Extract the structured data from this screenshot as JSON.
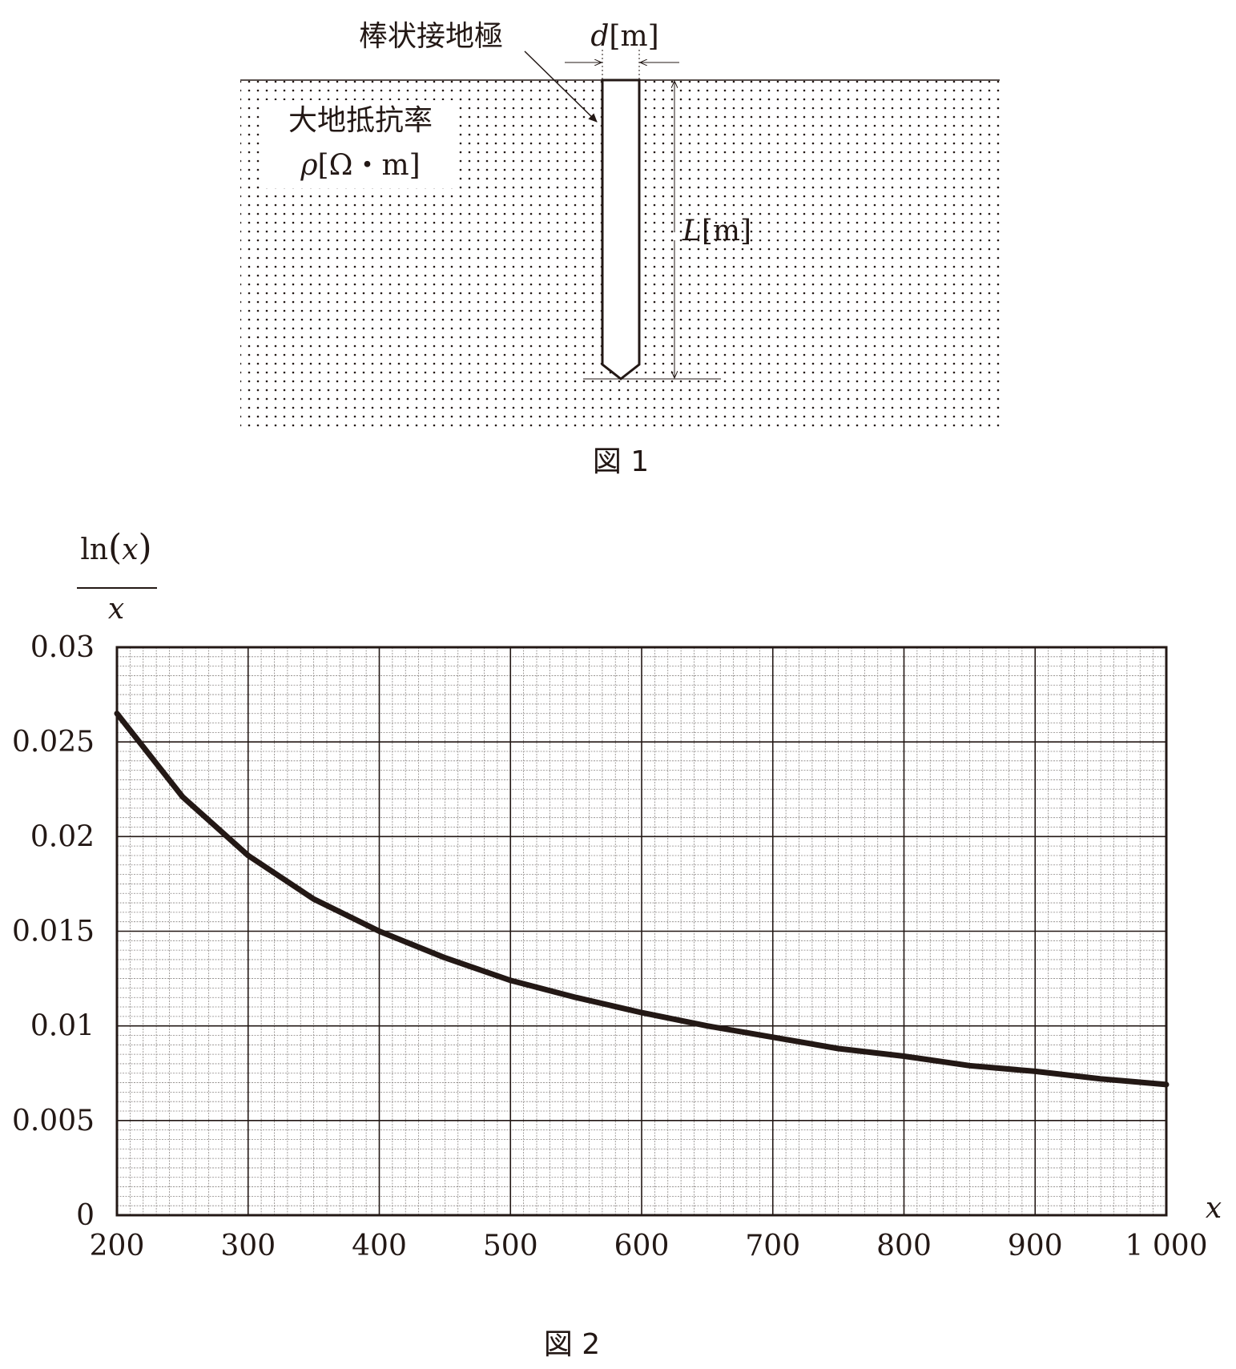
{
  "figure1": {
    "rod_label": "棒状接地極",
    "diameter_var": "d",
    "diameter_unit": "[m]",
    "resistivity_label": "大地抵抗率",
    "resistivity_var": "ρ",
    "resistivity_unit": "[Ω・m]",
    "length_var": "L",
    "length_unit": "[m]",
    "caption": "図 1"
  },
  "figure2": {
    "caption": "図 2"
  },
  "chart_data": {
    "type": "line",
    "function": "ln(x)/x",
    "ylabel_numerator": "ln",
    "ylabel_arg": "x",
    "ylabel_denominator": "x",
    "xlabel": "x",
    "xlim": [
      200,
      1000
    ],
    "ylim": [
      0,
      0.03
    ],
    "x_ticks": [
      200,
      300,
      400,
      500,
      600,
      700,
      800,
      900,
      1000
    ],
    "x_tick_labels": [
      "200",
      "300",
      "400",
      "500",
      "600",
      "700",
      "800",
      "900",
      "1 000"
    ],
    "y_ticks": [
      0,
      0.005,
      0.01,
      0.015,
      0.02,
      0.025,
      0.03
    ],
    "y_tick_labels": [
      "0",
      "0.005",
      "0.01",
      "0.015",
      "0.02",
      "0.025",
      "0.03"
    ],
    "grid": true,
    "series": [
      {
        "x": [
          200,
          250,
          300,
          350,
          400,
          450,
          500,
          550,
          600,
          650,
          700,
          750,
          800,
          850,
          900,
          950,
          1000
        ],
        "y": [
          0.0265,
          0.0221,
          0.019,
          0.0167,
          0.015,
          0.0136,
          0.0124,
          0.0115,
          0.0107,
          0.01,
          0.0094,
          0.0088,
          0.0084,
          0.0079,
          0.0076,
          0.0072,
          0.0069
        ]
      }
    ]
  }
}
